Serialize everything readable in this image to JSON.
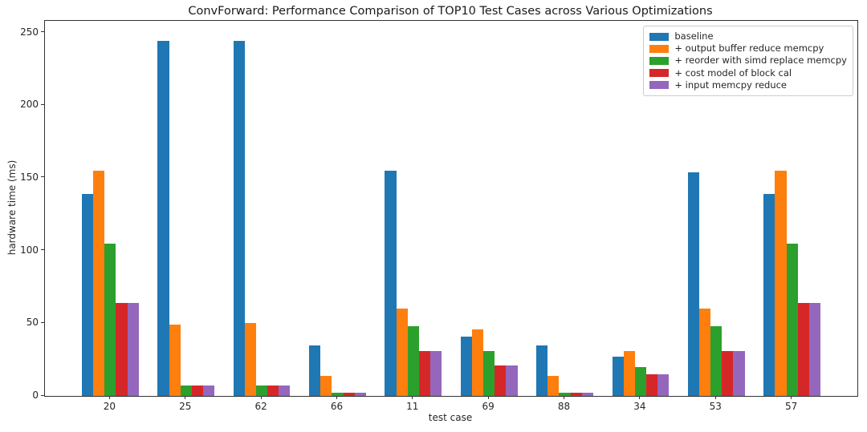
{
  "chart_data": {
    "type": "bar",
    "title": "ConvForward: Performance Comparison of TOP10 Test Cases across Various Optimizations",
    "xlabel": "test case",
    "ylabel": "hardware time (ms)",
    "categories": [
      "20",
      "25",
      "62",
      "66",
      "11",
      "69",
      "88",
      "34",
      "53",
      "57"
    ],
    "series": [
      {
        "name": "baseline",
        "color": "#1f77b4",
        "values": [
          139,
          244,
          244,
          35,
          155,
          41,
          35,
          27,
          154,
          139
        ]
      },
      {
        "name": "+ output buffer reduce memcpy",
        "color": "#ff7f0e",
        "values": [
          155,
          49,
          50,
          14,
          60,
          46,
          14,
          31,
          60,
          155
        ]
      },
      {
        "name": "+ reorder with simd replace memcpy",
        "color": "#2ca02c",
        "values": [
          105,
          7,
          7,
          2,
          48,
          31,
          2,
          20,
          48,
          105
        ]
      },
      {
        "name": "+ cost model of block cal",
        "color": "#d62728",
        "values": [
          64,
          7,
          7,
          2,
          31,
          21,
          2,
          15,
          31,
          64
        ]
      },
      {
        "name": "+ input memcpy reduce",
        "color": "#9467bd",
        "values": [
          64,
          7,
          7,
          2,
          31,
          21,
          2,
          15,
          31,
          64
        ]
      }
    ],
    "yticks": [
      0,
      50,
      100,
      150,
      200,
      250
    ],
    "ylim": [
      0,
      258
    ],
    "grid": false,
    "legend_position": "upper right"
  }
}
